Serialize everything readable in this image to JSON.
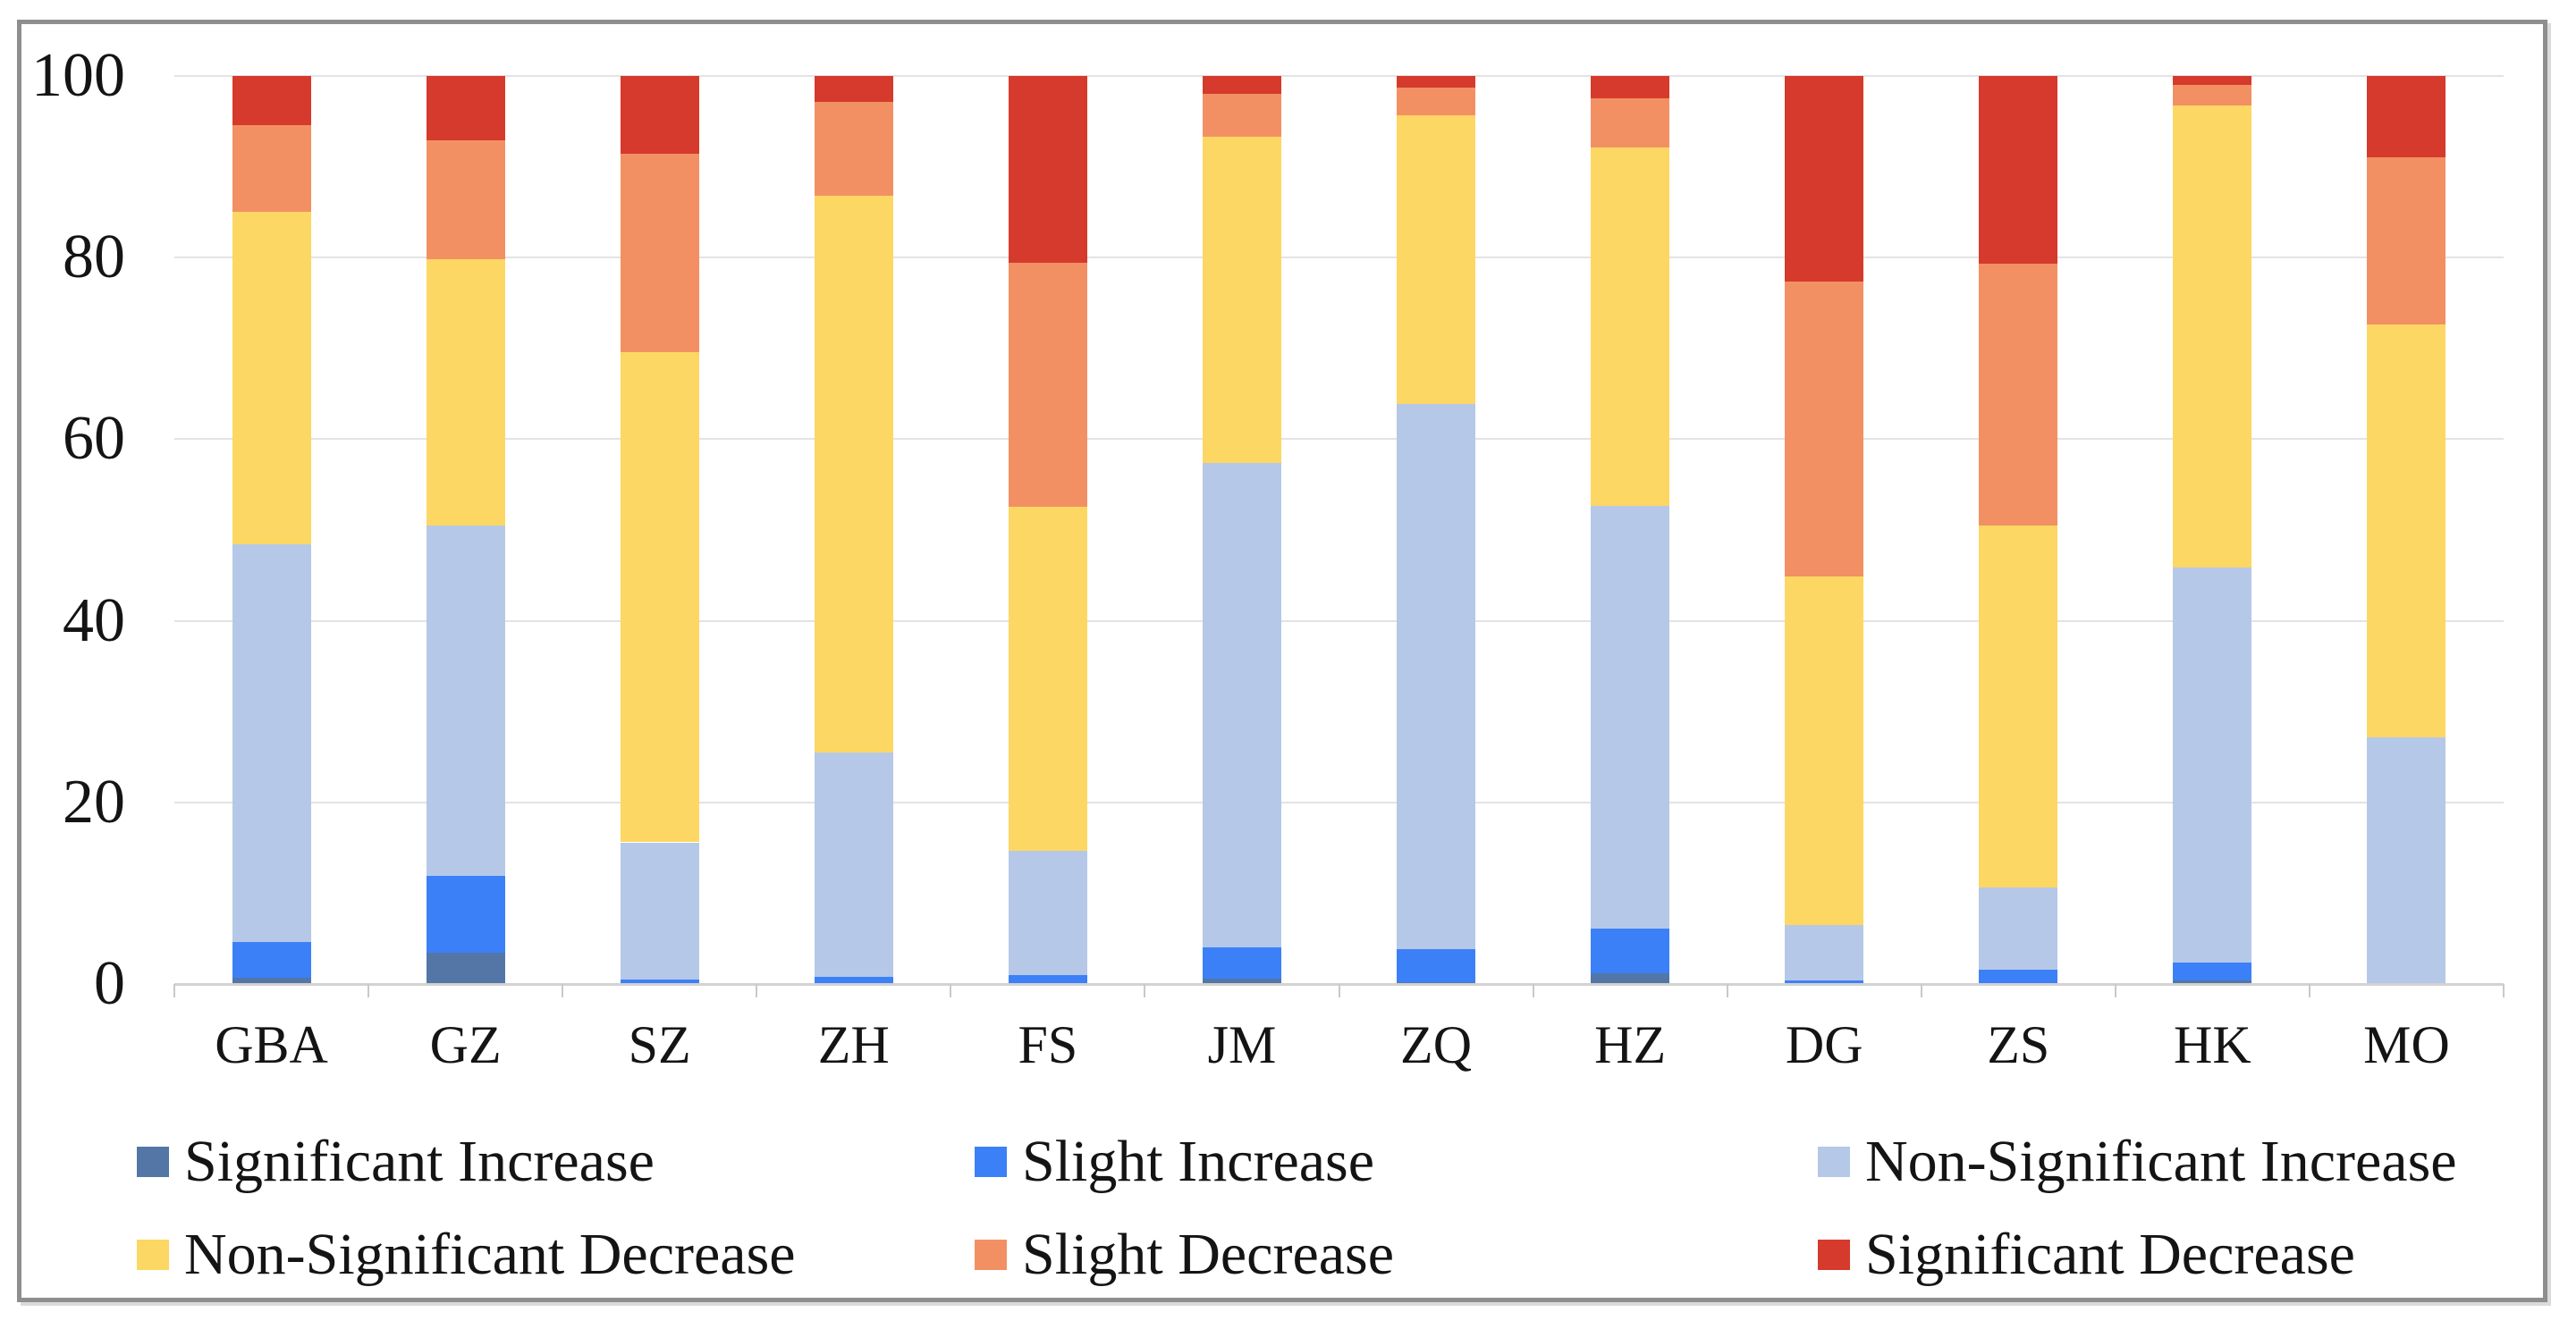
{
  "chart_data": {
    "type": "bar",
    "stacked": true,
    "stack_total": 100,
    "title": "",
    "xlabel": "",
    "ylabel": "",
    "ylim": [
      0,
      100
    ],
    "y_ticks": [
      0,
      20,
      40,
      60,
      80,
      100
    ],
    "grid": "horizontal",
    "legend_position": "bottom",
    "categories": [
      "GBA",
      "GZ",
      "SZ",
      "ZH",
      "FS",
      "JM",
      "ZQ",
      "HZ",
      "DG",
      "ZS",
      "HK",
      "MO"
    ],
    "series": [
      {
        "name": "Significant Increase",
        "color": "#5376A6",
        "values": [
          0.7,
          3.4,
          0,
          0,
          0,
          0.6,
          0.2,
          1.2,
          0,
          0,
          0.4,
          0
        ]
      },
      {
        "name": "Slight Increase",
        "color": "#3C80F8",
        "values": [
          3.9,
          8.5,
          0.5,
          0.8,
          1.0,
          3.4,
          3.6,
          4.9,
          0.4,
          1.6,
          2.0,
          0
        ]
      },
      {
        "name": "Non-Significant Increase",
        "color": "#B5C8E8",
        "values": [
          43.8,
          38.6,
          15.1,
          24.7,
          13.7,
          53.4,
          60.1,
          46.6,
          6.1,
          9.0,
          43.5,
          27.2
        ]
      },
      {
        "name": "Non-Significant Decrease",
        "color": "#FDD763",
        "values": [
          36.6,
          29.3,
          54.0,
          61.3,
          37.9,
          35.9,
          31.8,
          39.4,
          38.4,
          39.9,
          50.9,
          45.4
        ]
      },
      {
        "name": "Slight Decrease",
        "color": "#F29064",
        "values": [
          9.6,
          13.1,
          21.8,
          10.3,
          26.8,
          4.7,
          3.0,
          5.4,
          32.5,
          28.8,
          2.2,
          18.4
        ]
      },
      {
        "name": "Significant Decrease",
        "color": "#D53A2C",
        "values": [
          5.4,
          7.1,
          8.6,
          2.9,
          20.6,
          2.0,
          1.3,
          2.5,
          22.6,
          20.7,
          1.0,
          9.0
        ]
      }
    ]
  }
}
